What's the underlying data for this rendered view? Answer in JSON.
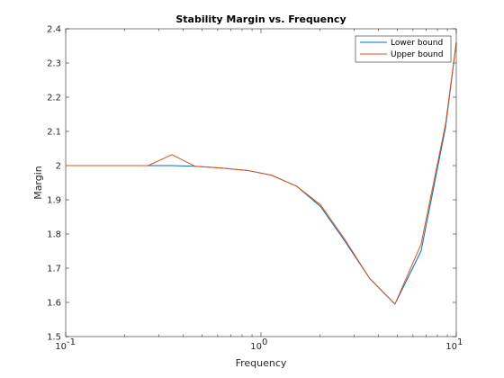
{
  "chart_data": {
    "type": "line",
    "title": "Stability Margin vs. Frequency",
    "xlabel": "Frequency",
    "ylabel": "Margin",
    "xscale": "log",
    "xlim": [
      0.1,
      10
    ],
    "ylim": [
      1.5,
      2.4
    ],
    "x_ticks": [
      {
        "value": 0.1,
        "base": "10",
        "exp": "-1"
      },
      {
        "value": 1,
        "base": "10",
        "exp": "0"
      },
      {
        "value": 10,
        "base": "10",
        "exp": "1"
      }
    ],
    "y_ticks": [
      {
        "value": 1.5,
        "label": "1.5"
      },
      {
        "value": 1.6,
        "label": "1.6"
      },
      {
        "value": 1.7,
        "label": "1.7"
      },
      {
        "value": 1.8,
        "label": "1.8"
      },
      {
        "value": 1.9,
        "label": "1.9"
      },
      {
        "value": 2.0,
        "label": "2"
      },
      {
        "value": 2.1,
        "label": "2.1"
      },
      {
        "value": 2.2,
        "label": "2.2"
      },
      {
        "value": 2.3,
        "label": "2.3"
      },
      {
        "value": 2.4,
        "label": "2.4"
      }
    ],
    "grid": false,
    "legend_position": "top-right",
    "series": [
      {
        "name": "Lower bound",
        "color": "#0072BD",
        "x": [
          0.1,
          0.133,
          0.178,
          0.264,
          0.35,
          0.46,
          0.62,
          0.85,
          1.13,
          1.52,
          2.02,
          2.68,
          3.6,
          4.85,
          6.6,
          8.8,
          10
        ],
        "y": [
          2.0,
          2.0,
          2.0,
          2.0,
          2.0,
          1.998,
          1.993,
          1.986,
          1.972,
          1.94,
          1.88,
          1.78,
          1.67,
          1.595,
          1.75,
          2.11,
          2.36
        ]
      },
      {
        "name": "Upper bound",
        "color": "#D95319",
        "x": [
          0.1,
          0.133,
          0.178,
          0.264,
          0.35,
          0.46,
          0.62,
          0.85,
          1.13,
          1.52,
          2.02,
          2.68,
          3.6,
          4.85,
          6.6,
          8.8,
          10
        ],
        "y": [
          2.0,
          2.0,
          2.0,
          2.0,
          2.032,
          1.998,
          1.993,
          1.986,
          1.972,
          1.94,
          1.885,
          1.785,
          1.67,
          1.595,
          1.77,
          2.12,
          2.36
        ]
      }
    ]
  }
}
